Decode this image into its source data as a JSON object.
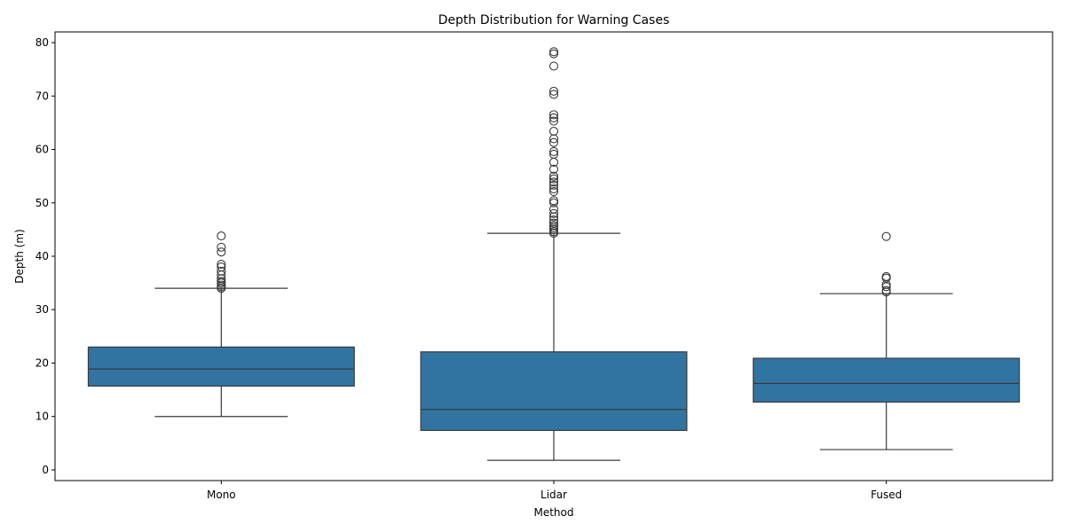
{
  "chart_data": {
    "type": "boxplot",
    "title": "Depth Distribution for Warning Cases",
    "xlabel": "Method",
    "ylabel": "Depth (m)",
    "ylim": [
      -2,
      82
    ],
    "yticks": [
      0,
      10,
      20,
      30,
      40,
      50,
      60,
      70,
      80
    ],
    "grid": false,
    "colors": {
      "box_fill": "#3274a1",
      "line": "#3a3a3a"
    },
    "categories": [
      "Mono",
      "Lidar",
      "Fused"
    ],
    "boxes": [
      {
        "name": "Mono",
        "whisker_low": 10.0,
        "q1": 15.7,
        "median": 18.9,
        "q3": 23.0,
        "whisker_high": 34.0,
        "outliers": [
          34.0,
          34.3,
          34.6,
          35.0,
          35.3,
          35.8,
          36.5,
          37.2,
          38.0,
          38.5,
          40.8,
          41.7,
          43.8
        ]
      },
      {
        "name": "Lidar",
        "whisker_low": 1.8,
        "q1": 7.4,
        "median": 11.3,
        "q3": 22.1,
        "whisker_high": 44.3,
        "outliers": [
          44.3,
          44.6,
          45.0,
          45.3,
          45.7,
          46.2,
          46.8,
          47.4,
          48.0,
          48.8,
          50.0,
          50.4,
          52.1,
          52.6,
          53.3,
          53.9,
          54.5,
          55.0,
          56.3,
          57.6,
          59.1,
          59.6,
          61.3,
          62.0,
          63.4,
          65.3,
          65.9,
          66.5,
          70.3,
          70.9,
          75.6,
          77.9,
          78.3
        ]
      },
      {
        "name": "Fused",
        "whisker_low": 3.8,
        "q1": 12.7,
        "median": 16.2,
        "q3": 20.9,
        "whisker_high": 33.0,
        "outliers": [
          33.3,
          33.6,
          34.3,
          34.7,
          35.9,
          36.2,
          43.7
        ]
      }
    ]
  }
}
